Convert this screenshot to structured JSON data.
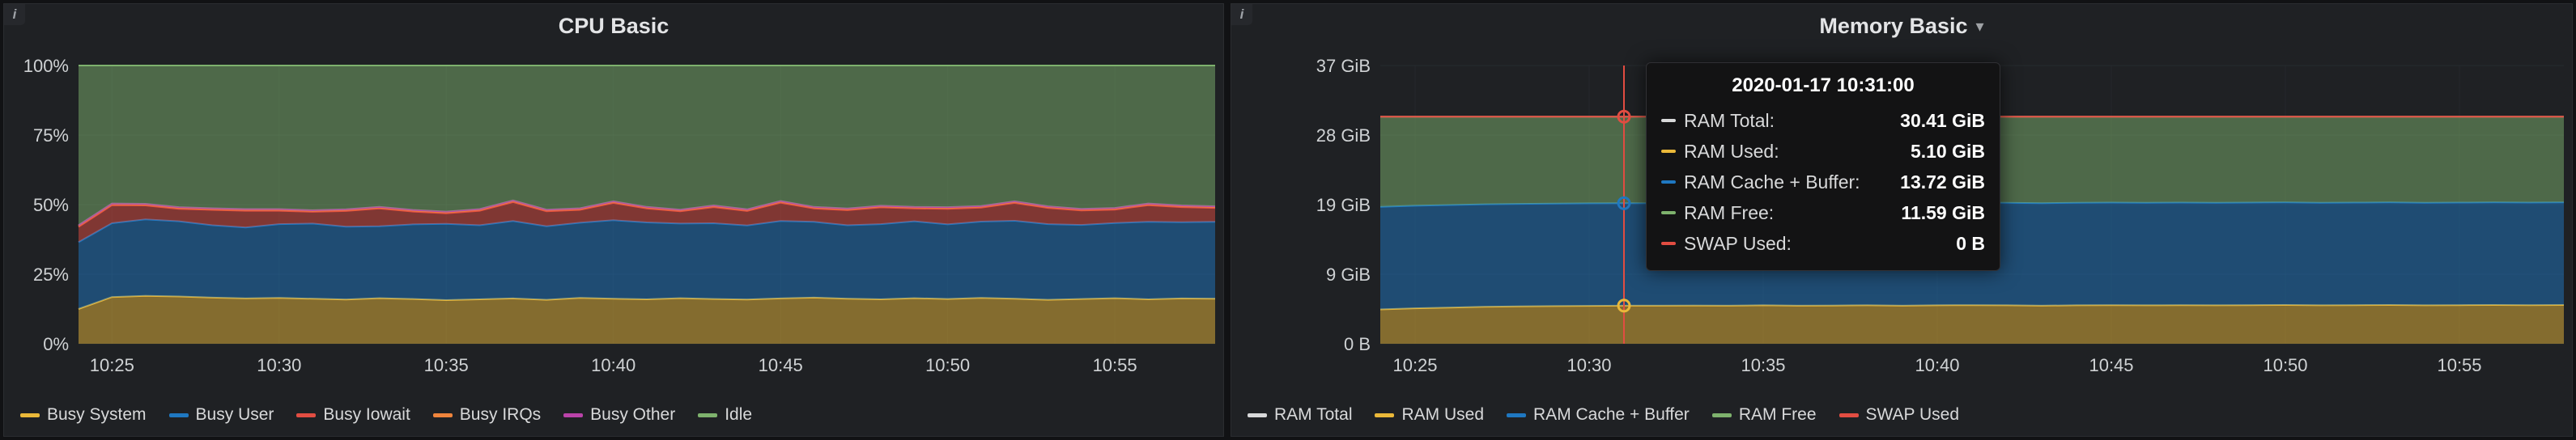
{
  "page": {
    "background": "#111214"
  },
  "panels": {
    "cpu": {
      "title": "CPU Basic",
      "info_icon": "i"
    },
    "memory": {
      "title": "Memory Basic",
      "menu_caret": "▾",
      "info_icon": "i"
    }
  },
  "tooltip": {
    "title": "2020-01-17 10:31:00",
    "rows": [
      {
        "label": "RAM Total:",
        "value": "30.41 GiB",
        "color": "#d8d9da"
      },
      {
        "label": "RAM Used:",
        "value": "5.10 GiB",
        "color": "#EAB839"
      },
      {
        "label": "RAM Cache + Buffer:",
        "value": "13.72 GiB",
        "color": "#1F78C1"
      },
      {
        "label": "RAM Free:",
        "value": "11.59 GiB",
        "color": "#7EB26D"
      },
      {
        "label": "SWAP Used:",
        "value": "0 B",
        "color": "#E24D42"
      }
    ]
  },
  "chart_data": [
    {
      "id": "cpu",
      "type": "area",
      "stacked": true,
      "title": "CPU Basic",
      "unit": "percent",
      "grid": true,
      "legend_position": "bottom",
      "ymax": 100,
      "ylim": [
        0,
        100
      ],
      "yticks": [
        {
          "value": 100,
          "label": "100%"
        },
        {
          "value": 75,
          "label": "75%"
        },
        {
          "value": 50,
          "label": "50%"
        },
        {
          "value": 25,
          "label": "25%"
        },
        {
          "value": 0,
          "label": "0%"
        }
      ],
      "x": [
        "10:24",
        "10:25",
        "10:26",
        "10:27",
        "10:28",
        "10:29",
        "10:30",
        "10:31",
        "10:32",
        "10:33",
        "10:34",
        "10:35",
        "10:36",
        "10:37",
        "10:38",
        "10:39",
        "10:40",
        "10:41",
        "10:42",
        "10:43",
        "10:44",
        "10:45",
        "10:46",
        "10:47",
        "10:48",
        "10:49",
        "10:50",
        "10:51",
        "10:52",
        "10:53",
        "10:54",
        "10:55",
        "10:56",
        "10:57",
        "10:58"
      ],
      "xticks": [
        "10:25",
        "10:30",
        "10:35",
        "10:40",
        "10:45",
        "10:50",
        "10:55"
      ],
      "series": [
        {
          "name": "Busy System",
          "color": "#EAB839",
          "stack": true,
          "fill": 0.5,
          "values": [
            12.5,
            16.8,
            17.2,
            17.0,
            16.6,
            16.3,
            16.5,
            16.2,
            15.9,
            16.4,
            16.1,
            15.7,
            16.0,
            16.3,
            15.8,
            16.5,
            16.2,
            16.0,
            16.4,
            16.1,
            15.9,
            16.3,
            16.6,
            16.2,
            16.0,
            16.4,
            16.1,
            16.5,
            16.2,
            15.8,
            16.1,
            16.4,
            16.0,
            16.3,
            16.2
          ]
        },
        {
          "name": "Busy User",
          "color": "#1F78C1",
          "stack": true,
          "fill": 0.5,
          "values": [
            24.0,
            26.5,
            27.5,
            27.0,
            26.0,
            25.5,
            26.5,
            27.0,
            26.2,
            25.8,
            26.8,
            27.4,
            26.6,
            27.8,
            26.4,
            27.0,
            28.2,
            27.6,
            26.8,
            27.2,
            26.6,
            27.8,
            27.2,
            26.4,
            27.0,
            27.6,
            26.8,
            27.4,
            28.0,
            27.2,
            26.6,
            27.0,
            27.8,
            27.4,
            27.6
          ]
        },
        {
          "name": "Busy Iowait",
          "color": "#E24D42",
          "stack": true,
          "fill": 0.5,
          "values": [
            5.5,
            6.5,
            5.0,
            4.5,
            5.5,
            6.0,
            4.8,
            4.2,
            5.6,
            6.4,
            4.6,
            3.8,
            5.2,
            6.8,
            5.4,
            4.6,
            6.2,
            5.0,
            4.4,
            5.8,
            5.2,
            6.6,
            4.8,
            5.4,
            6.0,
            4.6,
            5.6,
            5.0,
            6.4,
            5.8,
            5.2,
            4.8,
            6.0,
            5.4,
            5.0
          ]
        },
        {
          "name": "Busy IRQs",
          "color": "#EF843C",
          "stack": true,
          "fill": 0.5,
          "values": [
            0.4,
            0.4,
            0.4,
            0.4,
            0.4,
            0.4,
            0.4,
            0.4,
            0.4,
            0.4,
            0.4,
            0.4,
            0.4,
            0.4,
            0.4,
            0.4,
            0.4,
            0.4,
            0.4,
            0.4,
            0.4,
            0.4,
            0.4,
            0.4,
            0.4,
            0.4,
            0.4,
            0.4,
            0.4,
            0.4,
            0.4,
            0.4,
            0.4,
            0.4,
            0.4
          ]
        },
        {
          "name": "Busy Other",
          "color": "#BA43A9",
          "stack": true,
          "fill": 0.5,
          "values": [
            0.2,
            0.2,
            0.2,
            0.2,
            0.2,
            0.2,
            0.2,
            0.2,
            0.2,
            0.2,
            0.2,
            0.2,
            0.2,
            0.2,
            0.2,
            0.2,
            0.2,
            0.2,
            0.2,
            0.2,
            0.2,
            0.2,
            0.2,
            0.2,
            0.2,
            0.2,
            0.2,
            0.2,
            0.2,
            0.2,
            0.2,
            0.2,
            0.2,
            0.2,
            0.2
          ]
        },
        {
          "name": "Idle",
          "color": "#7EB26D",
          "stack": true,
          "fill": 0.5,
          "values": [
            57.4,
            49.6,
            49.7,
            50.9,
            51.3,
            51.6,
            51.6,
            52.0,
            51.7,
            50.8,
            51.9,
            52.5,
            51.6,
            48.5,
            51.8,
            51.3,
            48.8,
            50.8,
            51.8,
            50.3,
            51.7,
            48.7,
            50.8,
            51.4,
            50.4,
            50.8,
            50.9,
            50.5,
            48.8,
            50.6,
            51.5,
            51.2,
            49.6,
            50.3,
            50.6
          ]
        }
      ]
    },
    {
      "id": "memory",
      "type": "area",
      "stacked": true,
      "title": "Memory Basic",
      "unit": "bytes",
      "grid": true,
      "legend_position": "bottom",
      "ymax": 37.25,
      "ylim": [
        0,
        37.25
      ],
      "yticks": [
        {
          "value": 37.25,
          "label": "37 GiB"
        },
        {
          "value": 27.94,
          "label": "28 GiB"
        },
        {
          "value": 18.63,
          "label": "19 GiB"
        },
        {
          "value": 9.31,
          "label": "9 GiB"
        },
        {
          "value": 0,
          "label": "0 B"
        }
      ],
      "x": [
        "10:24",
        "10:25",
        "10:26",
        "10:27",
        "10:28",
        "10:29",
        "10:30",
        "10:31",
        "10:32",
        "10:33",
        "10:34",
        "10:35",
        "10:36",
        "10:37",
        "10:38",
        "10:39",
        "10:40",
        "10:41",
        "10:42",
        "10:43",
        "10:44",
        "10:45",
        "10:46",
        "10:47",
        "10:48",
        "10:49",
        "10:50",
        "10:51",
        "10:52",
        "10:53",
        "10:54",
        "10:55",
        "10:56",
        "10:57",
        "10:58"
      ],
      "xticks": [
        "10:25",
        "10:30",
        "10:35",
        "10:40",
        "10:45",
        "10:50",
        "10:55"
      ],
      "cursor": {
        "x": "10:31",
        "color": "#E24D42",
        "points": [
          {
            "y": 30.41,
            "color": "#E24D42"
          },
          {
            "y": 18.82,
            "color": "#1F78C1"
          },
          {
            "y": 5.1,
            "color": "#EAB839"
          }
        ]
      },
      "series": [
        {
          "name": "RAM Total",
          "color": "#d8d9da",
          "stack": false,
          "fill": 0,
          "values": [
            30.41,
            30.41,
            30.41,
            30.41,
            30.41,
            30.41,
            30.41,
            30.41,
            30.41,
            30.41,
            30.41,
            30.41,
            30.41,
            30.41,
            30.41,
            30.41,
            30.41,
            30.41,
            30.41,
            30.41,
            30.41,
            30.41,
            30.41,
            30.41,
            30.41,
            30.41,
            30.41,
            30.41,
            30.41,
            30.41,
            30.41,
            30.41,
            30.41,
            30.41,
            30.41
          ]
        },
        {
          "name": "RAM Used",
          "color": "#EAB839",
          "stack": true,
          "fill": 0.5,
          "values": [
            4.6,
            4.75,
            4.85,
            4.95,
            5.0,
            5.05,
            5.08,
            5.1,
            5.1,
            5.12,
            5.1,
            5.15,
            5.1,
            5.12,
            5.15,
            5.1,
            5.15,
            5.18,
            5.15,
            5.1,
            5.15,
            5.18,
            5.15,
            5.18,
            5.15,
            5.18,
            5.2,
            5.15,
            5.18,
            5.2,
            5.15,
            5.18,
            5.2,
            5.18,
            5.2
          ]
        },
        {
          "name": "RAM Cache + Buffer",
          "color": "#1F78C1",
          "stack": true,
          "fill": 0.5,
          "values": [
            13.72,
            13.72,
            13.72,
            13.72,
            13.72,
            13.72,
            13.72,
            13.72,
            13.72,
            13.72,
            13.72,
            13.72,
            13.72,
            13.72,
            13.72,
            13.72,
            13.72,
            13.72,
            13.72,
            13.72,
            13.72,
            13.72,
            13.72,
            13.72,
            13.72,
            13.72,
            13.72,
            13.72,
            13.72,
            13.72,
            13.72,
            13.72,
            13.72,
            13.72,
            13.72
          ]
        },
        {
          "name": "RAM Free",
          "color": "#7EB26D",
          "stack": true,
          "fill": 0.5,
          "values": [
            12.09,
            11.94,
            11.84,
            11.74,
            11.69,
            11.64,
            11.61,
            11.59,
            11.59,
            11.57,
            11.59,
            11.54,
            11.59,
            11.57,
            11.54,
            11.59,
            11.54,
            11.51,
            11.54,
            11.59,
            11.54,
            11.51,
            11.54,
            11.51,
            11.54,
            11.51,
            11.49,
            11.54,
            11.51,
            11.49,
            11.54,
            11.51,
            11.49,
            11.51,
            11.49
          ]
        },
        {
          "name": "SWAP Used",
          "color": "#E24D42",
          "stack": true,
          "fill": 0.5,
          "values": [
            0,
            0,
            0,
            0,
            0,
            0,
            0,
            0,
            0,
            0,
            0,
            0,
            0,
            0,
            0,
            0,
            0,
            0,
            0,
            0,
            0,
            0,
            0,
            0,
            0,
            0,
            0,
            0,
            0,
            0,
            0,
            0,
            0,
            0,
            0
          ]
        }
      ]
    }
  ]
}
